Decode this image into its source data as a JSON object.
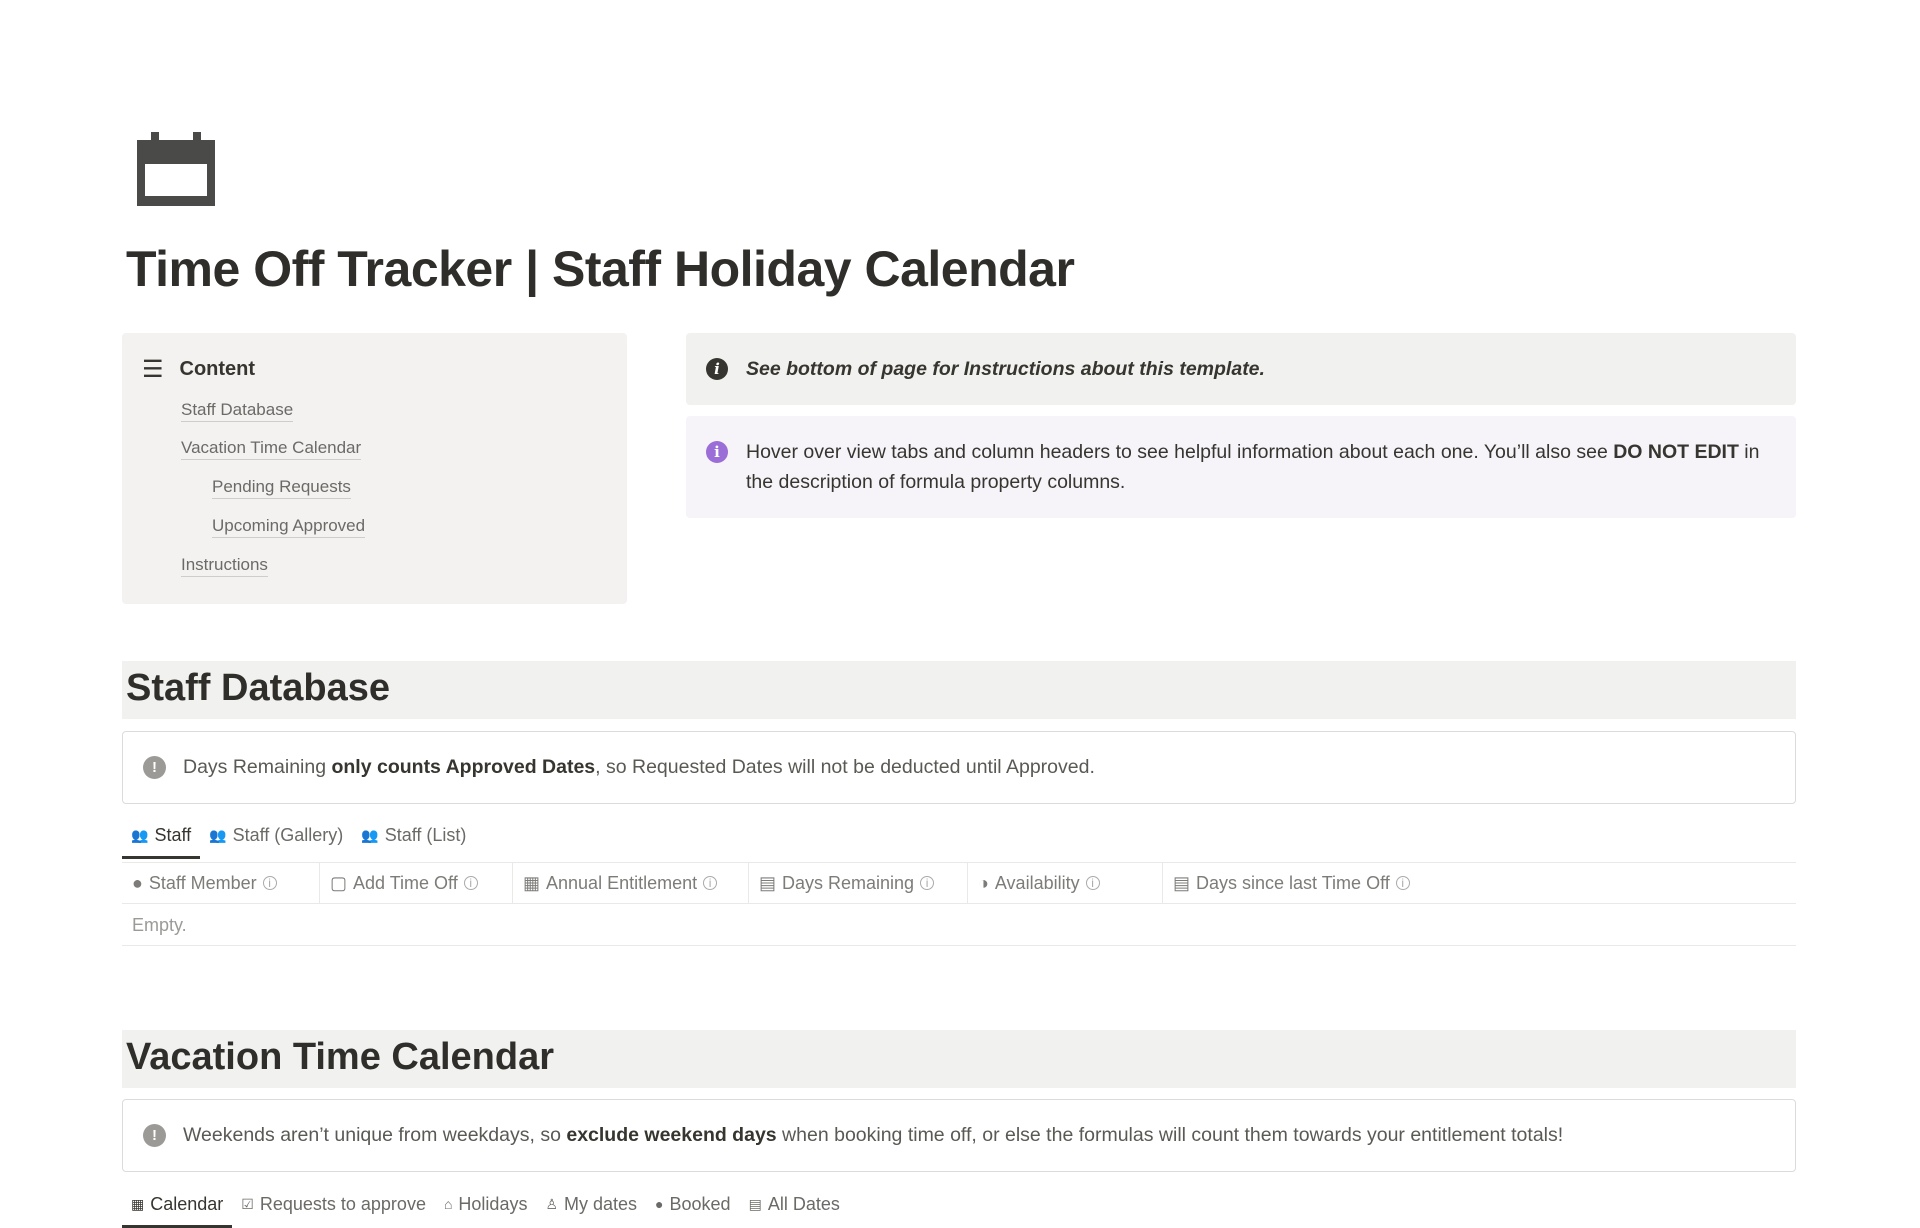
{
  "page": {
    "icon": "calendar-icon",
    "title": "Time Off Tracker | Staff Holiday Calendar"
  },
  "toc": {
    "heading": "Content",
    "items": [
      {
        "label": "Staff Database",
        "indent": 0
      },
      {
        "label": "Vacation Time Calendar",
        "indent": 0
      },
      {
        "label": "Pending Requests",
        "indent": 1
      },
      {
        "label": "Upcoming Approved",
        "indent": 1
      },
      {
        "label": "Instructions",
        "indent": 0
      }
    ]
  },
  "callouts": {
    "info": "See bottom of page for Instructions about this template.",
    "hover_a": "Hover over view tabs and column headers to see helpful information about each one. You’ll also see ",
    "hover_b": "DO NOT EDIT",
    "hover_c": " in the description of formula property columns."
  },
  "staff": {
    "heading": "Staff Database",
    "warn_a": "Days Remaining ",
    "warn_b": "only counts Approved Dates",
    "warn_c": ", so Requested Dates will not be deducted until Approved.",
    "tabs": [
      "Staff",
      "Staff (Gallery)",
      "Staff (List)"
    ],
    "columns": [
      {
        "label": "Staff Member",
        "icon": "person-icon"
      },
      {
        "label": "Add Time Off",
        "icon": "button-icon"
      },
      {
        "label": "Annual Entitlement",
        "icon": "calendar-icon"
      },
      {
        "label": "Days Remaining",
        "icon": "formula-icon"
      },
      {
        "label": "Availability",
        "icon": "status-icon"
      },
      {
        "label": "Days since last Time Off",
        "icon": "formula-icon"
      }
    ],
    "empty": "Empty."
  },
  "vacation": {
    "heading": "Vacation Time Calendar",
    "warn_a": "Weekends aren’t unique from weekdays, so ",
    "warn_b": "exclude weekend days",
    "warn_c": " when booking time off, or else the formulas will count them towards your entitlement totals!",
    "tabs": [
      "Calendar",
      "Requests to approve",
      "Holidays",
      "My dates",
      "Booked",
      "All Dates"
    ]
  },
  "colors": {
    "accent_purple": "#9a6dd7",
    "callout_gray": "#f1f1ef",
    "text": "#37352f"
  }
}
